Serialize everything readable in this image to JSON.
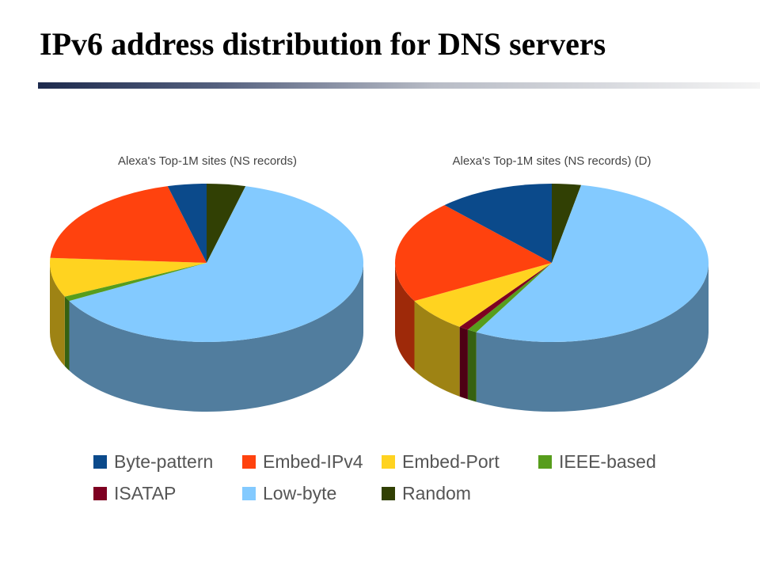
{
  "slide": {
    "title": "IPv6 address distribution for DNS servers"
  },
  "categories": [
    {
      "name": "Byte-pattern",
      "color": "#0b4a8b"
    },
    {
      "name": "Embed-IPv4",
      "color": "#ff420e"
    },
    {
      "name": "Embed-Port",
      "color": "#ffd320"
    },
    {
      "name": "IEEE-based",
      "color": "#579d1c"
    },
    {
      "name": "ISATAP",
      "color": "#7e0021"
    },
    {
      "name": "Low-byte",
      "color": "#83caff"
    },
    {
      "name": "Random",
      "color": "#314004"
    }
  ],
  "chart_data": [
    {
      "type": "pie",
      "title": "Alexa's Top-1M sites (NS records)",
      "labels": [
        "Byte-pattern",
        "Embed-IPv4",
        "Embed-Port",
        "IEEE-based",
        "ISATAP",
        "Low-byte",
        "Random"
      ],
      "values": [
        4,
        20,
        8,
        1,
        0,
        63,
        4
      ],
      "style": "3d"
    },
    {
      "type": "pie",
      "title": "Alexa's Top-1M sites (NS records) (D)",
      "labels": [
        "Byte-pattern",
        "Embed-IPv4",
        "Embed-Port",
        "IEEE-based",
        "ISATAP",
        "Low-byte",
        "Random"
      ],
      "values": [
        12,
        21,
        7,
        1,
        1,
        55,
        3
      ],
      "style": "3d"
    }
  ]
}
